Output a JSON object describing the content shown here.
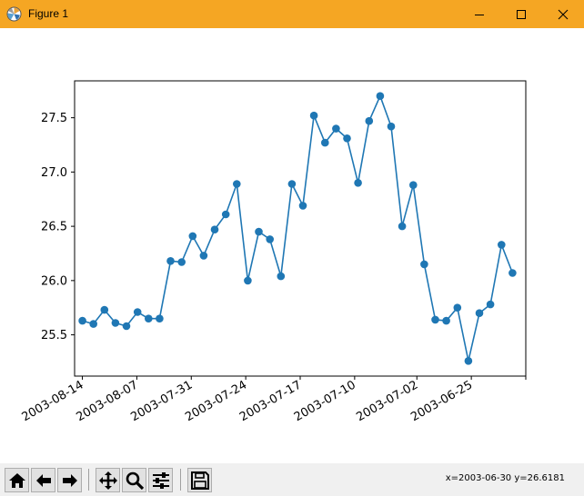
{
  "window": {
    "title": "Figure 1",
    "accent_color": "#f5a623",
    "controls": [
      "minimize-icon",
      "maximize-icon",
      "close-icon"
    ]
  },
  "toolbar": {
    "buttons": [
      {
        "name": "home-button",
        "icon": "home-icon"
      },
      {
        "name": "back-button",
        "icon": "arrow-left-icon"
      },
      {
        "name": "forward-button",
        "icon": "arrow-right-icon"
      },
      {
        "name": "pan-button",
        "icon": "move-icon"
      },
      {
        "name": "zoom-button",
        "icon": "magnifier-icon"
      },
      {
        "name": "configure-subplots-button",
        "icon": "sliders-icon"
      },
      {
        "name": "save-button",
        "icon": "floppy-disk-icon"
      }
    ],
    "coordinates": "x=2003-06-30 y=26.6181"
  },
  "chart_data": {
    "type": "line",
    "title": "",
    "xlabel": "",
    "ylabel": "",
    "line_color": "#1f77b4",
    "marker": "circle",
    "grid": false,
    "x_axis": "dates, decreasing left to right",
    "xlim": [
      "2003-08-15",
      "2003-06-18"
    ],
    "ylim": [
      25.12,
      27.84
    ],
    "xticks": [
      "2003-08-14",
      "2003-08-07",
      "2003-07-31",
      "2003-07-24",
      "2003-07-17",
      "2003-07-10",
      "2003-07-02",
      "2003-06-25",
      ""
    ],
    "yticks": [
      25.5,
      26.0,
      26.5,
      27.0,
      27.5
    ],
    "series": [
      {
        "name": "",
        "values": [
          25.63,
          25.6,
          25.73,
          25.61,
          25.58,
          25.71,
          25.65,
          25.65,
          26.18,
          26.17,
          26.41,
          26.23,
          26.47,
          26.61,
          26.89,
          26.0,
          26.45,
          26.38,
          26.04,
          26.89,
          26.69,
          27.52,
          27.27,
          27.4,
          27.31,
          26.9,
          27.47,
          27.7,
          27.42,
          26.5,
          26.88,
          26.15,
          25.64,
          25.63,
          25.75,
          25.26,
          25.7,
          25.78,
          26.33,
          26.07
        ]
      }
    ]
  }
}
